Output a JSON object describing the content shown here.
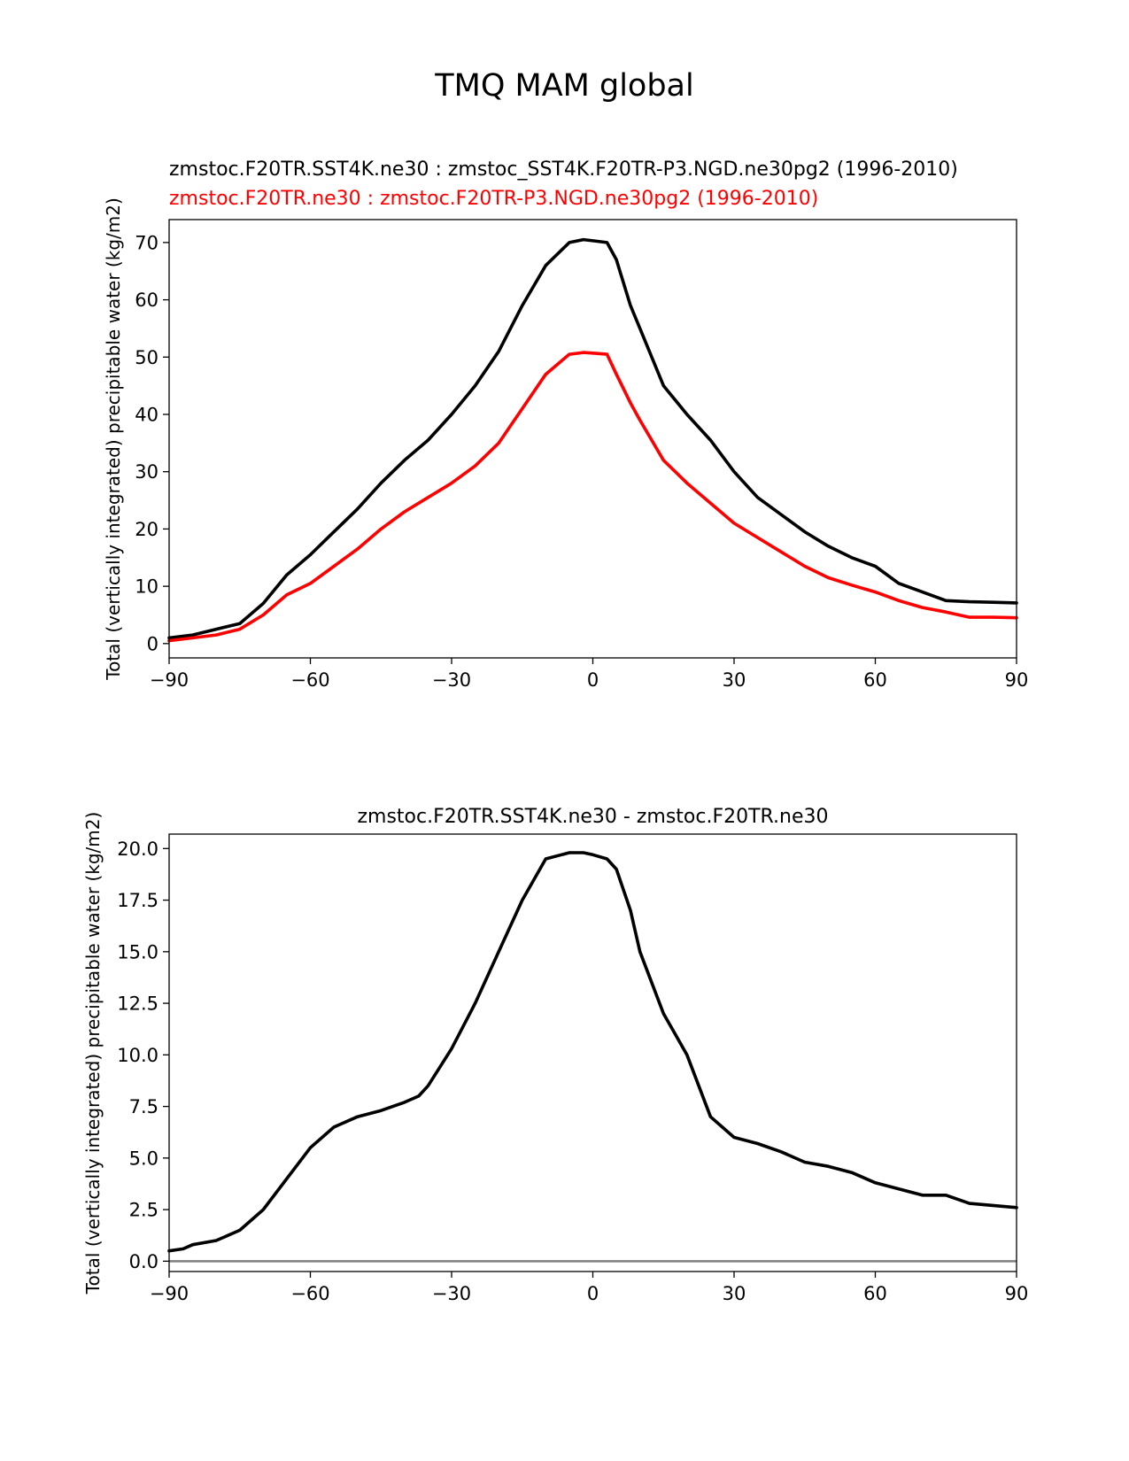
{
  "figure": {
    "title": "TMQ MAM global",
    "colors": {
      "test": "#000000",
      "reference": "#ff0000",
      "zero_line": "#808080"
    }
  },
  "chart_data": [
    {
      "type": "line",
      "title_lines": [
        "zmstoc.F20TR.SST4K.ne30 : zmstoc_SST4K.F20TR-P3.NGD.ne30pg2 (1996-2010)",
        "zmstoc.F20TR.ne30 : zmstoc.F20TR-P3.NGD.ne30pg2 (1996-2010)"
      ],
      "xlabel": "",
      "ylabel": "Total (vertically integrated) precipitable water (kg/m2)",
      "xlim": [
        -90,
        90
      ],
      "ylim": [
        -2.5,
        74
      ],
      "xticks": [
        -90,
        -60,
        -30,
        0,
        30,
        60,
        90
      ],
      "xtick_labels": [
        "−90",
        "−60",
        "−30",
        "0",
        "30",
        "60",
        "90"
      ],
      "yticks": [
        0,
        10,
        20,
        30,
        40,
        50,
        60,
        70
      ],
      "ytick_labels": [
        "0",
        "10",
        "20",
        "30",
        "40",
        "50",
        "60",
        "70"
      ],
      "series": [
        {
          "name": "zmstoc.F20TR.SST4K.ne30",
          "color": "#000000",
          "x": [
            -90,
            -85,
            -80,
            -75,
            -70,
            -65,
            -60,
            -55,
            -50,
            -45,
            -40,
            -35,
            -30,
            -25,
            -20,
            -15,
            -10,
            -5,
            -2,
            0,
            3,
            5,
            8,
            10,
            15,
            20,
            25,
            30,
            35,
            40,
            45,
            50,
            55,
            60,
            65,
            70,
            75,
            80,
            85,
            90
          ],
          "y": [
            1,
            1.5,
            2.5,
            3.5,
            7,
            12,
            15.5,
            19.5,
            23.5,
            28,
            32,
            35.5,
            40,
            45,
            51,
            59,
            66,
            70,
            70.5,
            70.3,
            70,
            67,
            59,
            55,
            45,
            40,
            35.5,
            30,
            25.5,
            22.5,
            19.5,
            17,
            15,
            13.5,
            10.5,
            9,
            7.5,
            7.3,
            7.2,
            7.1
          ]
        },
        {
          "name": "zmstoc.F20TR.ne30",
          "color": "#ff0000",
          "x": [
            -90,
            -85,
            -80,
            -75,
            -70,
            -65,
            -60,
            -55,
            -50,
            -45,
            -40,
            -35,
            -30,
            -25,
            -20,
            -15,
            -10,
            -5,
            -2,
            0,
            3,
            5,
            8,
            10,
            15,
            20,
            25,
            30,
            35,
            40,
            45,
            50,
            55,
            60,
            65,
            70,
            75,
            80,
            85,
            90
          ],
          "y": [
            0.5,
            1,
            1.5,
            2.5,
            5,
            8.5,
            10.5,
            13.5,
            16.5,
            20,
            23,
            25.5,
            28,
            31,
            35,
            41,
            47,
            50.5,
            50.8,
            50.7,
            50.5,
            47,
            42,
            39,
            32,
            28,
            24.5,
            21,
            18.5,
            16,
            13.5,
            11.5,
            10.2,
            9,
            7.5,
            6.3,
            5.5,
            4.6,
            4.6,
            4.5
          ]
        }
      ]
    },
    {
      "type": "line",
      "title_lines": [
        "zmstoc.F20TR.SST4K.ne30 - zmstoc.F20TR.ne30"
      ],
      "xlabel": "",
      "ylabel": "Total (vertically integrated) precipitable water (kg/m2)",
      "xlim": [
        -90,
        90
      ],
      "ylim": [
        -0.5,
        20.7
      ],
      "xticks": [
        -90,
        -60,
        -30,
        0,
        30,
        60,
        90
      ],
      "xtick_labels": [
        "−90",
        "−60",
        "−30",
        "0",
        "30",
        "60",
        "90"
      ],
      "yticks": [
        0,
        2.5,
        5,
        7.5,
        10,
        12.5,
        15,
        17.5,
        20
      ],
      "ytick_labels": [
        "0.0",
        "2.5",
        "5.0",
        "7.5",
        "10.0",
        "12.5",
        "15.0",
        "17.5",
        "20.0"
      ],
      "reference_line": {
        "y": 0,
        "color": "#808080"
      },
      "series": [
        {
          "name": "zmstoc.F20TR.SST4K.ne30 - zmstoc.F20TR.ne30",
          "color": "#000000",
          "x": [
            -90,
            -87,
            -85,
            -80,
            -75,
            -70,
            -65,
            -60,
            -55,
            -50,
            -45,
            -40,
            -37,
            -35,
            -30,
            -25,
            -20,
            -15,
            -10,
            -5,
            -2,
            0,
            3,
            5,
            8,
            10,
            15,
            20,
            25,
            30,
            35,
            40,
            45,
            50,
            55,
            60,
            65,
            70,
            75,
            80,
            85,
            90
          ],
          "y": [
            0.5,
            0.6,
            0.8,
            1,
            1.5,
            2.5,
            4,
            5.5,
            6.5,
            7,
            7.3,
            7.7,
            8,
            8.5,
            10.3,
            12.5,
            15,
            17.5,
            19.5,
            19.8,
            19.8,
            19.7,
            19.5,
            19,
            17,
            15,
            12,
            10,
            7,
            6,
            5.7,
            5.3,
            4.8,
            4.6,
            4.3,
            3.8,
            3.5,
            3.2,
            3.2,
            2.8,
            2.7,
            2.6
          ]
        }
      ]
    }
  ]
}
